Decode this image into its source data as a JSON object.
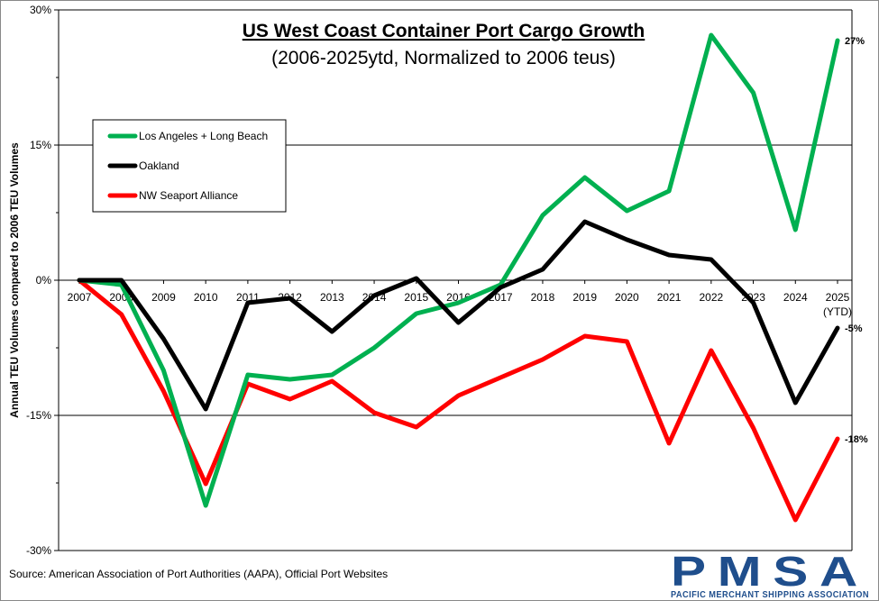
{
  "chart_data": {
    "type": "line",
    "title": "US West Coast Container Port Cargo Growth",
    "subtitle": "(2006-2025ytd, Normalized to 2006 teus)",
    "ylabel": "Annual TEU Volumes compared to 2006 TEU Volumes",
    "xlabel": "",
    "categories": [
      "2007",
      "2008",
      "2009",
      "2010",
      "2011",
      "2012",
      "2013",
      "2014",
      "2015",
      "2016",
      "2017",
      "2018",
      "2019",
      "2020",
      "2021",
      "2022",
      "2023",
      "2024",
      "2025"
    ],
    "category_sublabels": {
      "2025": "(YTD)"
    },
    "ylim": [
      -30,
      30
    ],
    "yticks": [
      30,
      15,
      0,
      -15,
      -30
    ],
    "ytick_labels": [
      "30%",
      "15%",
      "0%",
      "-15%",
      "-30%"
    ],
    "grid": true,
    "legend_position": "top-left",
    "series": [
      {
        "name": "Los Angeles + Long Beach",
        "color": "#00b050",
        "values": [
          0.0,
          -0.5,
          -10.0,
          -25.0,
          -10.5,
          -11.0,
          -10.5,
          -7.5,
          -3.7,
          -2.5,
          -0.5,
          7.2,
          11.4,
          7.7,
          9.9,
          27.2,
          20.8,
          5.6,
          26.6
        ],
        "end_label": "27%"
      },
      {
        "name": "Oakland",
        "color": "#000000",
        "values": [
          0.0,
          0.0,
          -6.5,
          -14.3,
          -2.5,
          -2.0,
          -5.7,
          -1.7,
          0.2,
          -4.7,
          -0.8,
          1.2,
          6.5,
          4.5,
          2.8,
          2.3,
          -2.5,
          -13.6,
          -5.3
        ],
        "end_label": "-5%"
      },
      {
        "name": "NW Seaport Alliance",
        "color": "#ff0000",
        "values": [
          0.0,
          -3.8,
          -12.3,
          -22.6,
          -11.5,
          -13.2,
          -11.2,
          -14.7,
          -16.3,
          -12.8,
          -10.8,
          -8.8,
          -6.2,
          -6.8,
          -18.1,
          -7.8,
          -16.4,
          -26.6,
          -17.6
        ],
        "end_label": "-18%"
      }
    ]
  },
  "source_text": "Source:  American Association of Port Authorities (AAPA), Official Port Websites",
  "logo": {
    "main": "PMSA",
    "sub": "PACIFIC MERCHANT SHIPPING ASSOCIATION",
    "color": "#1f4e8c"
  }
}
